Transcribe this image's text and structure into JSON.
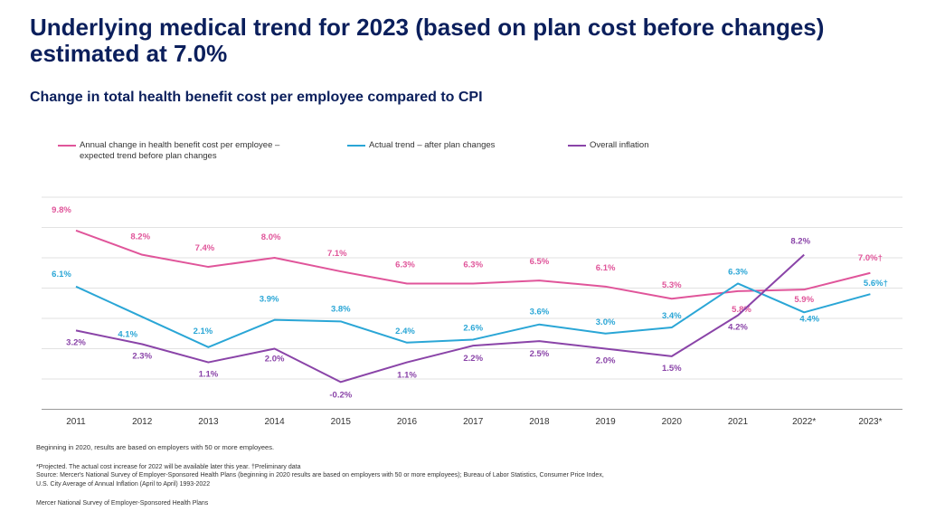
{
  "title": "Underlying medical trend for 2023 (based on plan cost before changes) estimated at 7.0%",
  "subtitle": "Change in total health benefit cost per employee compared to CPI",
  "colors": {
    "before": "#e0559a",
    "after": "#2aa6d6",
    "inflation": "#8a44a8",
    "title": "#0b1f5c",
    "grid": "#e2e2e2"
  },
  "legend": [
    {
      "label": "Annual change in health benefit cost per employee – expected trend before plan changes",
      "color": "#e0559a"
    },
    {
      "label": "Actual trend – after plan changes",
      "color": "#2aa6d6"
    },
    {
      "label": "Overall inflation",
      "color": "#8a44a8"
    }
  ],
  "chart_data": {
    "type": "line",
    "categories": [
      "2011",
      "2012",
      "2013",
      "2014",
      "2015",
      "2016",
      "2017",
      "2018",
      "2019",
      "2020",
      "2021",
      "2022*",
      "2023*"
    ],
    "series": [
      {
        "name": "Annual change in health benefit cost per employee – expected trend before plan changes",
        "color": "#e0559a",
        "values": [
          9.8,
          8.2,
          7.4,
          8.0,
          7.1,
          6.3,
          6.3,
          6.5,
          6.1,
          5.3,
          5.8,
          5.9,
          7.0
        ],
        "labels": [
          "9.8%",
          "8.2%",
          "7.4%",
          "8.0%",
          "7.1%",
          "6.3%",
          "6.3%",
          "6.5%",
          "6.1%",
          "5.3%",
          "5.8%",
          "5.9%",
          "7.0%†"
        ]
      },
      {
        "name": "Actual trend – after plan changes",
        "color": "#2aa6d6",
        "values": [
          6.1,
          4.1,
          2.1,
          3.9,
          3.8,
          2.4,
          2.6,
          3.6,
          3.0,
          3.4,
          6.3,
          4.4,
          5.6
        ],
        "labels": [
          "6.1%",
          "4.1%",
          "2.1%",
          "3.9%",
          "3.8%",
          "2.4%",
          "2.6%",
          "3.6%",
          "3.0%",
          "3.4%",
          "6.3%",
          "4.4%",
          "5.6%†"
        ]
      },
      {
        "name": "Overall inflation",
        "color": "#8a44a8",
        "values": [
          3.2,
          2.3,
          1.1,
          2.0,
          -0.2,
          1.1,
          2.2,
          2.5,
          2.0,
          1.5,
          4.2,
          8.2,
          null
        ],
        "labels": [
          "3.2%",
          "2.3%",
          "1.1%",
          "2.0%",
          "-0.2%",
          "1.1%",
          "2.2%",
          "2.5%",
          "2.0%",
          "1.5%",
          "4.2%",
          "8.2%",
          ""
        ]
      }
    ],
    "ylim": [
      -2,
      12
    ],
    "grid": true,
    "legend_position": "top"
  },
  "notes": {
    "main": "Beginning in 2020, results are based on employers with 50 or more employees.",
    "line1": "*Projected. The actual cost increase for 2022 will be available later this year. †Preliminary data",
    "line2": "Source: Mercer's National Survey of Employer-Sponsored Health Plans (beginning in 2020 results are based on employers with 50 or more employees); Bureau of Labor Statistics, Consumer Price Index,",
    "line3": "U.S. City Average of Annual Inflation (April to April) 1993-2022",
    "footer": "Mercer National Survey of Employer-Sponsored Health Plans"
  }
}
